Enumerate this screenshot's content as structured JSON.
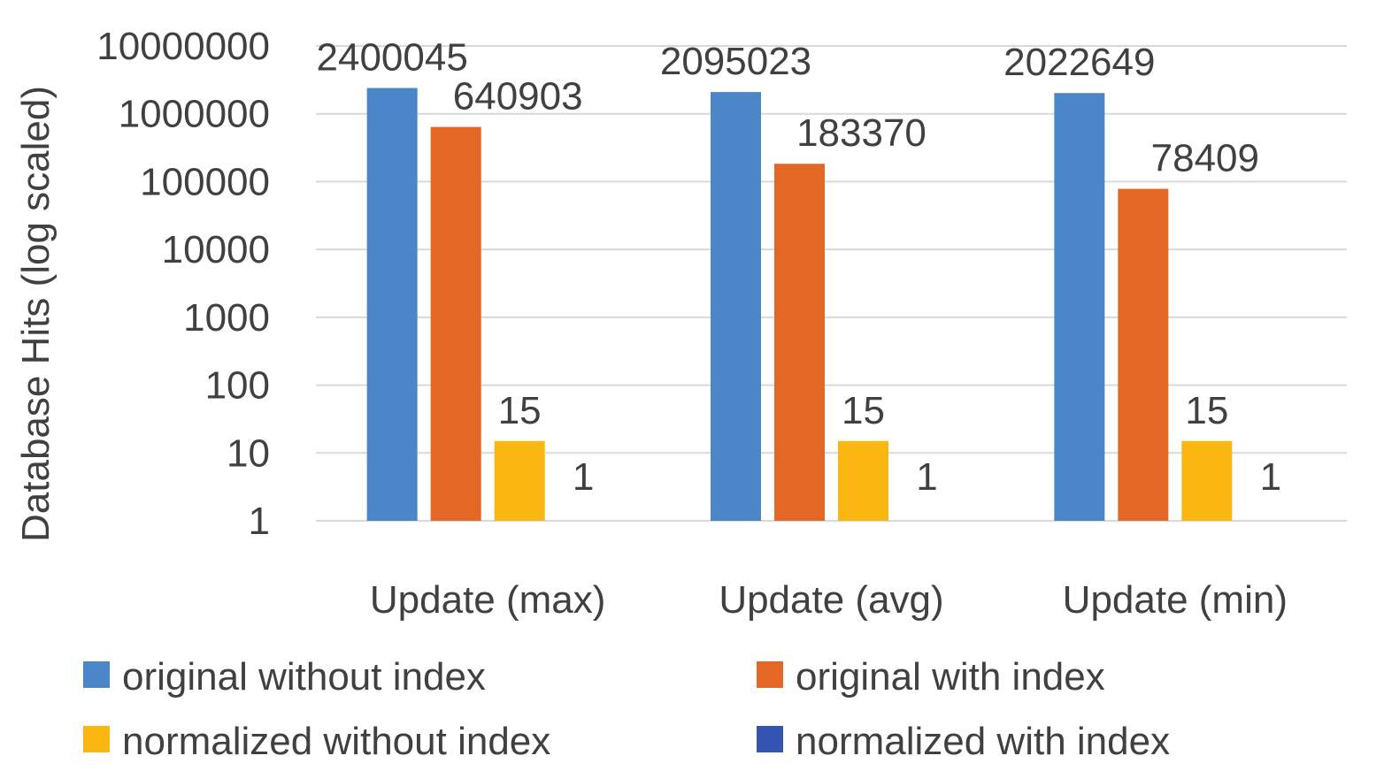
{
  "chart_data": {
    "type": "bar",
    "title": "",
    "xlabel": "",
    "ylabel": "Database Hits (log scaled)",
    "yscale": "log",
    "ylim": [
      1,
      10000000
    ],
    "yticks": [
      "1",
      "10",
      "100",
      "1000",
      "10000",
      "100000",
      "1000000",
      "10000000"
    ],
    "grid": true,
    "legend_position": "bottom",
    "categories": [
      "Update (max)",
      "Update (avg)",
      "Update (min)"
    ],
    "series": [
      {
        "name": "original without index",
        "color": "#4a86c8",
        "values": [
          2400045,
          2095023,
          2022649
        ],
        "labels": [
          "2400045",
          "2095023",
          "2022649"
        ]
      },
      {
        "name": "original with index",
        "color": "#e46725",
        "values": [
          640903,
          183370,
          78409
        ],
        "labels": [
          "640903",
          "183370",
          "78409"
        ]
      },
      {
        "name": "normalized without index",
        "color": "#fbb612",
        "values": [
          15,
          15,
          15
        ],
        "labels": [
          "15",
          "15",
          "15"
        ]
      },
      {
        "name": "normalized with index",
        "color": "#3555b2",
        "values": [
          1,
          1,
          1
        ],
        "labels": [
          "1",
          "1",
          "1"
        ]
      }
    ]
  }
}
